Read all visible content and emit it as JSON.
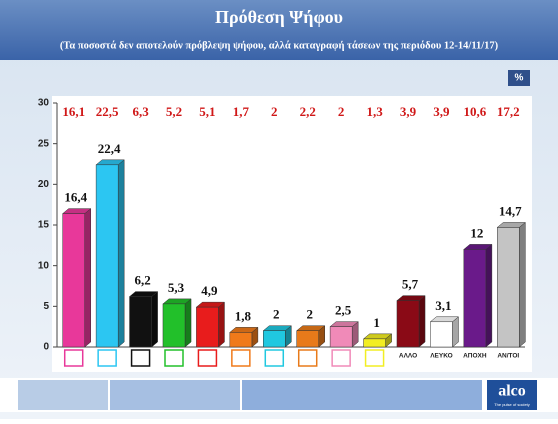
{
  "chart_data": {
    "type": "bar3d",
    "title": "Πρόθεση Ψήφου",
    "subtitle": "(Τα ποσοστά δεν αποτελούν πρόβλεψη ψήφου, αλλά καταγραφή τάσεων  της περιόδου 12-14/11/17)",
    "unit_badge": "%",
    "categories": [
      null,
      null,
      null,
      null,
      null,
      null,
      null,
      null,
      null,
      null,
      "ΑΛΛΟ",
      "ΛΕΥΚΟ",
      "ΑΠΟΧΗ",
      "ΑΝ/ΤΟΙ"
    ],
    "values": [
      16.4,
      22.4,
      6.2,
      5.3,
      4.9,
      1.8,
      2,
      2,
      2.5,
      1,
      5.7,
      3.1,
      12,
      14.7
    ],
    "value_labels": [
      "16,4",
      "22,4",
      "6,2",
      "5,3",
      "4,9",
      "1,8",
      "2",
      "2",
      "2,5",
      "1",
      "5,7",
      "3,1",
      "12",
      "14,7"
    ],
    "previous_values": [
      16.1,
      22.5,
      6.3,
      5.2,
      5.1,
      1.7,
      2,
      2.2,
      2,
      1.3,
      3.9,
      3.9,
      10.6,
      17.2
    ],
    "previous_value_labels": [
      "16,1",
      "22,5",
      "6,3",
      "5,2",
      "5,1",
      "1,7",
      "2",
      "2,2",
      "2",
      "1,3",
      "3,9",
      "3,9",
      "10,6",
      "17,2"
    ],
    "colors": [
      "#e8389a",
      "#2cc6f2",
      "#111111",
      "#22c02a",
      "#e81c1c",
      "#f07a1a",
      "#20c8e0",
      "#e87a1a",
      "#f08ab8",
      "#f2ee22",
      "#8a0a16",
      "#ffffff",
      "#6a1a8a",
      "#c4c4c4"
    ],
    "ylim": [
      0,
      30
    ],
    "yticks": [
      0,
      5,
      10,
      15,
      20,
      25,
      30
    ],
    "brand": "alco",
    "brand_tagline": "The pulse of society"
  }
}
